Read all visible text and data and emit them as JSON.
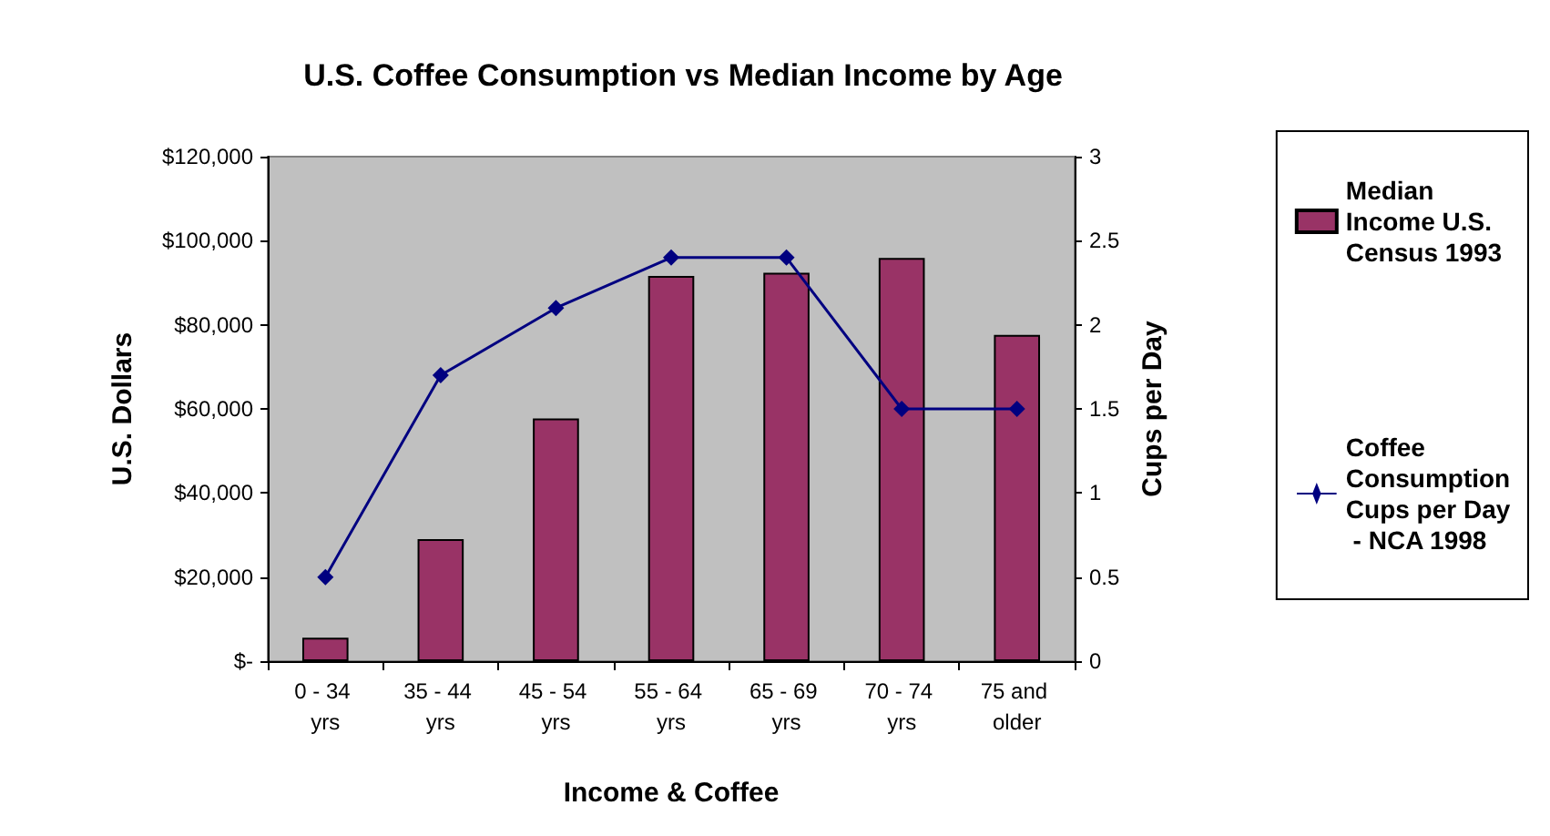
{
  "chart_data": {
    "type": "bar",
    "title": "U.S. Coffee Consumption vs Median Income by Age",
    "xlabel": "Income & Coffee",
    "ylabel": "U.S. Dollars",
    "y2label": "Cups per Day",
    "categories": [
      "0 - 34 yrs",
      "35 - 44 yrs",
      "45 - 54 yrs",
      "55 - 64 yrs",
      "65 - 69 yrs",
      "70 - 74 yrs",
      "75 and older"
    ],
    "series": [
      {
        "name": "Median Income U.S. Census 1993",
        "color": "#993366",
        "values": [
          5600,
          29000,
          57700,
          91600,
          92400,
          95900,
          77600
        ]
      },
      {
        "name": "Coffee Consumption Cups per Day - NCA 1998",
        "type": "line",
        "axis": "y2",
        "color": "#000080",
        "values": [
          0.5,
          1.7,
          2.1,
          2.4,
          2.4,
          1.5,
          1.5
        ]
      }
    ],
    "ylim": [
      0,
      120000
    ],
    "yticks": [
      {
        "value": 0,
        "label": "$-"
      },
      {
        "value": 20000,
        "label": "$20,000"
      },
      {
        "value": 40000,
        "label": "$40,000"
      },
      {
        "value": 60000,
        "label": "$60,000"
      },
      {
        "value": 80000,
        "label": "$80,000"
      },
      {
        "value": 100000,
        "label": "$100,000"
      },
      {
        "value": 120000,
        "label": "$120,000"
      }
    ],
    "y2lim": [
      0,
      3
    ],
    "y2ticks": [
      0,
      0.5,
      1,
      1.5,
      2,
      2.5,
      3
    ],
    "legend": "right",
    "marker": "diamond",
    "line_style": "solid"
  }
}
